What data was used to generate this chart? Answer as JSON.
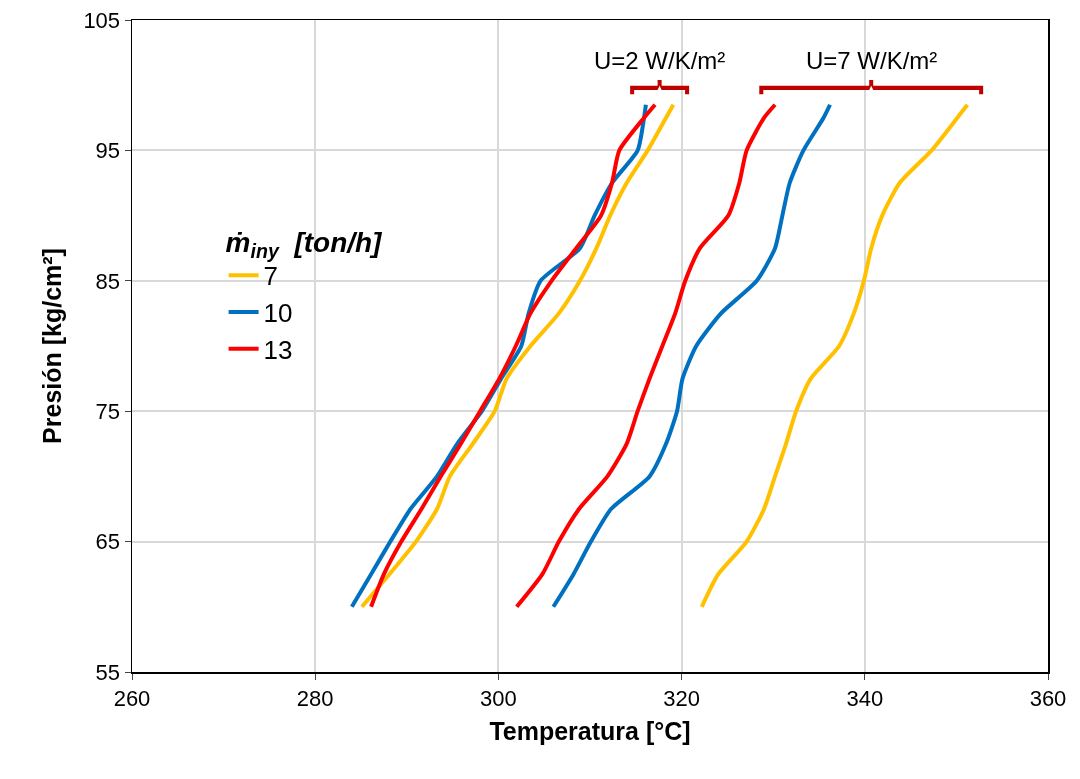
{
  "chart_data": {
    "type": "line",
    "xlabel": "Temperatura [°C]",
    "ylabel": "Presión [kg/cm²]",
    "legend_title": "ṁ$_{iny}$  [ton/h]",
    "annotations": [
      "U=2 W/K/m²",
      "U=7 W/K/m²"
    ],
    "xlim": [
      260,
      360
    ],
    "xticks": [
      260,
      280,
      300,
      320,
      340,
      360
    ],
    "ylim": [
      55,
      105
    ],
    "yticks": [
      55,
      65,
      75,
      85,
      95,
      105
    ],
    "grid": true,
    "legend": "left",
    "marker": "none",
    "line_style": "solid",
    "series": [
      {
        "name": "7",
        "color": "#ffc000",
        "x": [
          285.1,
          288.1,
          291.0,
          293.3,
          294.7,
          297.2,
          299.6,
          300.9,
          303.5,
          306.6,
          308.9,
          310.7,
          312.2,
          314.0,
          316.3,
          318.3,
          319.1
        ],
        "values": [
          60,
          62.5,
          65,
          67.5,
          70,
          72.5,
          75,
          77.5,
          80,
          82.5,
          85,
          87.5,
          90,
          92.5,
          95,
          97.5,
          98.5
        ]
      },
      {
        "name": "10",
        "color": "#0070c0",
        "x": [
          284.0,
          286.1,
          288.2,
          290.4,
          293.3,
          295.5,
          298.2,
          300.3,
          302.5,
          303.3,
          304.6,
          308.9,
          310.5,
          312.4,
          315.2,
          315.9,
          316.1
        ],
        "values": [
          60,
          62.5,
          65,
          67.5,
          70,
          72.5,
          75,
          77.5,
          80,
          82.5,
          85,
          87.5,
          90,
          92.5,
          95,
          97.5,
          98.5
        ]
      },
      {
        "name": "13",
        "color": "#ff0000",
        "x": [
          286.1,
          287.5,
          289.4,
          291.6,
          293.7,
          295.9,
          298.0,
          300.1,
          301.9,
          303.5,
          305.8,
          308.5,
          311.2,
          312.4,
          313.2,
          315.9,
          317.1
        ],
        "values": [
          60,
          62.5,
          65,
          67.5,
          70,
          72.5,
          75,
          77.5,
          80,
          82.5,
          85,
          87.5,
          90,
          92.5,
          95,
          97.5,
          98.5
        ]
      },
      {
        "color": "#ffc000",
        "x": [
          322.2,
          324.0,
          327.1,
          329.0,
          330.2,
          331.4,
          332.5,
          334.1,
          337.2,
          338.8,
          339.9,
          340.7,
          341.9,
          343.8,
          347.3,
          350.1,
          351.2
        ],
        "values": [
          60,
          62.5,
          65,
          67.5,
          70,
          72.5,
          75,
          77.5,
          80,
          82.5,
          85,
          87.5,
          90,
          92.5,
          95,
          97.5,
          98.5
        ]
      },
      {
        "color": "#0070c0",
        "x": [
          306.0,
          308.2,
          310.1,
          312.3,
          316.5,
          318.3,
          319.5,
          320.1,
          321.6,
          324.3,
          328.2,
          330.2,
          331.0,
          331.8,
          333.3,
          335.5,
          336.2
        ],
        "values": [
          60,
          62.5,
          65,
          67.5,
          70,
          72.5,
          75,
          77.5,
          80,
          82.5,
          85,
          87.5,
          90,
          92.5,
          95,
          97.5,
          98.5
        ]
      },
      {
        "color": "#ff0000",
        "x": [
          302.0,
          304.8,
          306.6,
          308.8,
          311.9,
          314.0,
          315.2,
          316.5,
          317.9,
          319.3,
          320.4,
          322.0,
          325.1,
          326.3,
          327.1,
          329.0,
          330.2
        ],
        "values": [
          60,
          62.5,
          65,
          67.5,
          70,
          72.5,
          75,
          77.5,
          80,
          82.5,
          85,
          87.5,
          90,
          92.5,
          95,
          97.5,
          98.5
        ]
      }
    ]
  }
}
